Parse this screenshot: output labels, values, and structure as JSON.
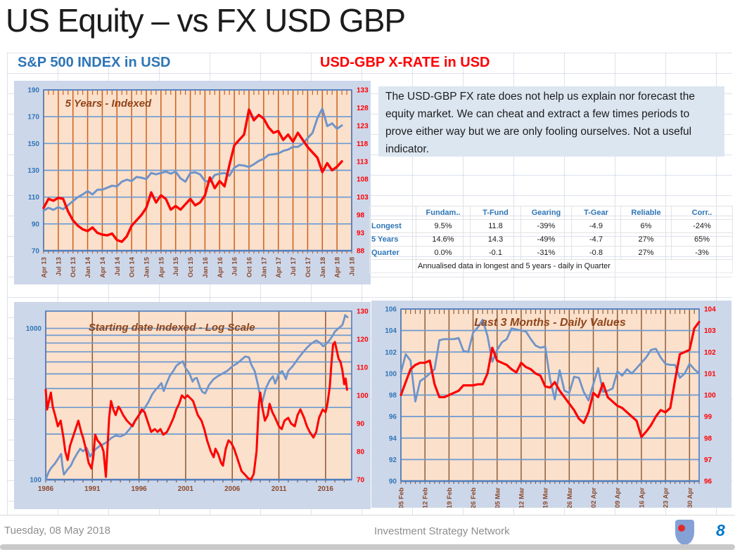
{
  "page": {
    "title": "US Equity – vs FX USD GBP",
    "footer_date": "Tuesday, 08 May 2018",
    "footer_center": "Investment Strategy Network",
    "page_number": "8"
  },
  "headers": {
    "left": "S&P 500 INDEX  in  USD",
    "right": "USD-GBP X-RATE  in  USD"
  },
  "commentary": "The USD-GBP FX rate does not help us explain nor forecast the equity market.  We can cheat and extract a few times periods to prove either way but we are only fooling ourselves.  Not a useful indicator.",
  "table": {
    "headers": [
      "",
      "Fundam..",
      "T-Fund",
      "Gearing",
      "T-Gear",
      "Reliable",
      "Corr.."
    ],
    "rows": [
      {
        "label": "Longest",
        "cells": [
          "9.5%",
          "11.8",
          "-39%",
          "-4.9",
          "6%",
          "-24%"
        ]
      },
      {
        "label": "5 Years",
        "cells": [
          "14.6%",
          "14.3",
          "-49%",
          "-4.7",
          "27%",
          "65%"
        ]
      },
      {
        "label": "Quarter",
        "cells": [
          "0.0%",
          "-0.1",
          "-31%",
          "-0.8",
          "27%",
          "-3%"
        ]
      }
    ],
    "note": "Annualised data in longest and 5 years - daily in Quarter"
  },
  "colors": {
    "header_blue": "#2E75B6",
    "header_red": "#FF0000",
    "chart_bg": "#CDD7EA",
    "plot_bg": "#FBE0CB",
    "frame_blue": "#4E7DBE",
    "series_blue": "#6F94C9",
    "series_red": "#FE0000",
    "title_brown": "#8F451A",
    "xlabel_brown": "#8B4A2B",
    "textbox_bg": "#DCE6F1",
    "footer_gray": "#8E8E8E",
    "page_number_blue": "#0077CC"
  },
  "chart_data": [
    {
      "type": "line",
      "name": "five-years-indexed",
      "title": "5 Years - Indexed",
      "x": {
        "min": 0,
        "max": 63,
        "grid_step": 3,
        "minor_step": 1,
        "label_step": 3,
        "rotated": true,
        "labels": [
          "Apr 13",
          "Jul 13",
          "Oct 13",
          "Jan 14",
          "Apr 14",
          "Jul 14",
          "Oct 14",
          "Jan 15",
          "Apr 15",
          "Jul 15",
          "Oct 15",
          "Jan 16",
          "Apr 16",
          "Jul 16",
          "Oct 16",
          "Jan 17",
          "Apr 17",
          "Jul 17",
          "Oct 17",
          "Jan 18",
          "Apr 18",
          "Jul 18"
        ]
      },
      "left": {
        "min": 70,
        "max": 190,
        "ticks": [
          190,
          170,
          150,
          130,
          110,
          90,
          70
        ]
      },
      "right": {
        "min": 88,
        "max": 133,
        "ticks": [
          133,
          128,
          123,
          118,
          113,
          108,
          103,
          98,
          93,
          88
        ]
      },
      "colors": {
        "vgrid": "#CE6018",
        "hgrid": "#6D9AD0"
      },
      "series": [
        {
          "name": "S&P 500 INDEX in USD",
          "axis": "left",
          "color": "#6F94C9",
          "width": 3,
          "y": [
            100,
            102,
            100.5,
            102.5,
            101,
            104,
            107,
            110,
            112,
            114.5,
            112,
            115.5,
            115.5,
            117,
            118.5,
            118,
            121.5,
            123,
            122,
            125,
            124.5,
            123.5,
            128,
            127,
            128,
            129,
            127.5,
            129,
            124,
            121.5,
            128,
            128.5,
            127,
            122,
            121.5,
            126.5,
            127.5,
            128,
            126,
            132,
            134,
            133.5,
            132.5,
            134.5,
            137,
            138.5,
            141.5,
            142,
            142.5,
            144.5,
            145.5,
            147.5,
            147.5,
            150,
            154,
            158,
            169,
            176,
            163,
            165,
            161,
            163.5
          ]
        },
        {
          "name": "USD-GBP X-RATE in USD",
          "axis": "right",
          "color": "#FE0000",
          "width": 3.4,
          "y": [
            100,
            102.5,
            102,
            102.8,
            102.5,
            99,
            96.5,
            95,
            94,
            93.5,
            94.5,
            93,
            92.5,
            92.3,
            92.8,
            91,
            90.5,
            92,
            95,
            96.5,
            98,
            100,
            104.3,
            101.5,
            103.5,
            102.5,
            99.5,
            100.5,
            99.5,
            101,
            102.5,
            100.7,
            101.5,
            103.5,
            108.5,
            105.5,
            107.5,
            106,
            112,
            117.5,
            119,
            120.5,
            127.5,
            124.5,
            126,
            125,
            122.5,
            121,
            121.5,
            119,
            120.5,
            118.5,
            121,
            119,
            117,
            115.5,
            114,
            110,
            112.5,
            110.5,
            111.5,
            113
          ]
        }
      ]
    },
    {
      "type": "line",
      "name": "starting-date-indexed-log-scale",
      "title": "Starting date Indexed - Log Scale",
      "x": {
        "min": 1986,
        "max": 2018.8,
        "minor_step": 1,
        "rotated": false,
        "grid_vals": [
          1986,
          1991,
          1996,
          2001,
          2006,
          2011,
          2016
        ],
        "label_vals": [
          1986,
          1991,
          1996,
          2001,
          2006,
          2011,
          2016
        ],
        "labels": [
          "1986",
          "1991",
          "1996",
          "2001",
          "2006",
          "2011",
          "2016"
        ]
      },
      "left": {
        "log": true,
        "min": 100,
        "max": 1300,
        "ticks": [
          1000,
          100
        ],
        "grid": [
          100,
          200,
          300,
          400,
          500,
          600,
          700,
          800,
          900,
          1000
        ]
      },
      "right": {
        "min": 70,
        "max": 130,
        "ticks": [
          130,
          120,
          110,
          100,
          90,
          80,
          70
        ]
      },
      "colors": {
        "vgrid": "#8B5530",
        "hgrid": "#6D9AD0"
      },
      "series": [
        {
          "name": "S&P 500 INDEX in USD",
          "axis": "left",
          "color": "#6F94C9",
          "width": 2.8,
          "x": [
            1986,
            1986.3,
            1986.6,
            1987,
            1987.4,
            1987.65,
            1987.8,
            1987.95,
            1988.3,
            1988.7,
            1989,
            1989.4,
            1989.7,
            1990,
            1990.4,
            1990.75,
            1991,
            1991.4,
            1991.8,
            1992.2,
            1992.6,
            1993,
            1993.5,
            1994,
            1994.5,
            1995,
            1995.5,
            1996,
            1996.5,
            1997,
            1997.4,
            1997.8,
            1998,
            1998.4,
            1998.65,
            1998.9,
            1999.3,
            1999.7,
            2000,
            2000.3,
            2000.7,
            2001,
            2001.4,
            2001.75,
            2001.95,
            2002.2,
            2002.55,
            2002.8,
            2003.1,
            2003.5,
            2004,
            2004.5,
            2005,
            2005.5,
            2006,
            2006.5,
            2007,
            2007.4,
            2007.8,
            2008,
            2008.4,
            2008.75,
            2009,
            2009.2,
            2009.6,
            2010,
            2010.35,
            2010.6,
            2011,
            2011.35,
            2011.75,
            2012,
            2012.5,
            2013,
            2013.5,
            2014,
            2014.5,
            2015,
            2015.4,
            2015.75,
            2016,
            2016.4,
            2016.8,
            2017,
            2017.4,
            2017.8,
            2018,
            2018.1,
            2018.35
          ],
          "y": [
            100,
            112,
            120,
            128,
            140,
            148,
            122,
            108,
            116,
            124,
            136,
            150,
            160,
            154,
            162,
            142,
            150,
            160,
            167,
            172,
            178,
            188,
            196,
            193,
            199,
            216,
            242,
            268,
            290,
            325,
            365,
            395,
            405,
            435,
            385,
            425,
            485,
            525,
            565,
            585,
            605,
            545,
            505,
            445,
            465,
            470,
            405,
            380,
            372,
            422,
            462,
            485,
            505,
            525,
            562,
            585,
            622,
            652,
            642,
            582,
            522,
            425,
            352,
            322,
            402,
            452,
            482,
            432,
            502,
            522,
            462,
            522,
            565,
            625,
            685,
            745,
            795,
            832,
            802,
            762,
            782,
            832,
            902,
            952,
            1002,
            1052,
            1152,
            1222,
            1185
          ]
        },
        {
          "name": "USD-GBP X-RATE in USD",
          "axis": "right",
          "color": "#FE0000",
          "width": 3,
          "x": [
            1986,
            1986.15,
            1986.35,
            1986.55,
            1986.75,
            1987,
            1987.3,
            1987.6,
            1987.9,
            1988.1,
            1988.35,
            1988.6,
            1988.9,
            1989.2,
            1989.5,
            1989.8,
            1990,
            1990.3,
            1990.6,
            1990.9,
            1991.1,
            1991.3,
            1991.55,
            1991.8,
            1992,
            1992.2,
            1992.45,
            1992.6,
            1992.8,
            1993,
            1993.25,
            1993.5,
            1993.8,
            1994,
            1994.3,
            1994.7,
            1995,
            1995.3,
            1995.6,
            1996,
            1996.3,
            1996.6,
            1997,
            1997.3,
            1997.7,
            1998,
            1998.3,
            1998.6,
            1999,
            1999.3,
            1999.7,
            2000,
            2000.3,
            2000.6,
            2000.9,
            2001.2,
            2001.5,
            2001.8,
            2002,
            2002.3,
            2002.7,
            2003,
            2003.3,
            2003.7,
            2004,
            2004.2,
            2004.5,
            2004.8,
            2005,
            2005.3,
            2005.6,
            2005.9,
            2006.2,
            2006.5,
            2006.8,
            2007,
            2007.3,
            2007.7,
            2008,
            2008.3,
            2008.6,
            2008.85,
            2009,
            2009.2,
            2009.5,
            2009.8,
            2010,
            2010.3,
            2010.6,
            2011,
            2011.3,
            2011.6,
            2012,
            2012.3,
            2012.7,
            2013,
            2013.3,
            2013.7,
            2014,
            2014.3,
            2014.7,
            2015,
            2015.3,
            2015.7,
            2016,
            2016.2,
            2016.45,
            2016.6,
            2016.8,
            2017,
            2017.2,
            2017.4,
            2017.6,
            2017.8,
            2018,
            2018.15,
            2018.3
          ],
          "y": [
            102,
            95,
            98,
            101,
            96,
            93,
            89,
            91,
            85,
            80,
            77,
            82,
            85,
            88,
            91,
            87,
            85,
            81,
            76,
            74,
            78,
            86,
            84,
            83,
            82,
            80,
            71,
            80,
            92,
            98,
            95,
            93,
            96,
            95,
            93,
            91,
            90,
            89,
            91,
            93,
            95,
            94,
            90,
            87,
            88,
            87,
            88,
            86,
            87,
            89,
            92,
            95,
            97,
            100,
            99,
            100,
            99,
            98,
            96,
            93,
            91,
            88,
            84,
            80,
            78,
            81,
            79,
            76,
            75,
            81,
            84,
            83,
            81,
            78,
            75,
            73,
            72,
            70.5,
            70,
            72,
            80,
            97,
            101,
            96,
            91,
            93,
            97,
            94,
            92,
            89,
            88,
            91,
            92,
            90,
            89,
            93,
            95,
            92,
            89,
            87,
            85,
            87,
            92,
            95,
            94,
            97,
            103,
            110,
            118,
            119,
            116,
            113,
            112,
            109,
            104,
            106,
            102
          ]
        }
      ]
    },
    {
      "type": "line",
      "name": "last-3-months-daily-values",
      "title": "Last 3 Months - Daily Values",
      "x": {
        "min": 0,
        "max": 62,
        "grid_step": 5,
        "minor_step": 1,
        "label_step": 5,
        "rotated": true,
        "labels": [
          "05 Feb",
          "12 Feb",
          "19 Feb",
          "26 Feb",
          "05 Mar",
          "12 Mar",
          "19 Mar",
          "26 Mar",
          "02 Apr",
          "09 Apr",
          "16 Apr",
          "23 Apr",
          "30 Apr"
        ]
      },
      "left": {
        "min": 90,
        "max": 106,
        "ticks": [
          106,
          104,
          102,
          100,
          98,
          96,
          94,
          92,
          90
        ]
      },
      "right": {
        "min": 96,
        "max": 104,
        "ticks": [
          104,
          103,
          102,
          101,
          100,
          99,
          98,
          97,
          96
        ]
      },
      "colors": {
        "vgrid": "#8F5F3C",
        "hgrid": "#6D9AD0"
      },
      "series": [
        {
          "name": "S&P 500 INDEX in USD",
          "axis": "left",
          "color": "#6F94C9",
          "width": 2.8,
          "y": [
            100.1,
            101.8,
            101.2,
            97.4,
            99.3,
            99.6,
            100.0,
            100.4,
            103.1,
            103.2,
            103.2,
            103.2,
            103.3,
            102.1,
            102.0,
            103.8,
            104.3,
            105.0,
            103.5,
            101.1,
            102.2,
            102.9,
            103.2,
            104.2,
            104.1,
            104.0,
            103.9,
            103.2,
            102.6,
            102.4,
            102.5,
            99.5,
            97.6,
            100.3,
            98.4,
            98.2,
            99.7,
            99.6,
            98.3,
            97.5,
            99.0,
            100.5,
            98.3,
            98.4,
            98.6,
            100.2,
            99.8,
            100.4,
            100.0,
            100.5,
            101.0,
            101.5,
            102.2,
            102.3,
            101.5,
            100.9,
            100.8,
            100.8,
            99.6,
            100.0,
            100.9,
            100.4,
            100.0
          ]
        },
        {
          "name": "USD-GBP X-RATE in USD",
          "axis": "right",
          "color": "#FE0000",
          "width": 3.2,
          "y": [
            100.0,
            100.6,
            101.2,
            101.4,
            101.5,
            101.5,
            101.6,
            100.5,
            99.9,
            99.9,
            100.0,
            100.1,
            100.2,
            100.45,
            100.45,
            100.45,
            100.5,
            100.5,
            101.0,
            102.2,
            101.6,
            101.5,
            101.4,
            101.2,
            101.05,
            101.5,
            101.3,
            101.2,
            101.0,
            100.9,
            100.4,
            100.35,
            100.6,
            100.2,
            99.9,
            99.6,
            99.3,
            98.9,
            98.7,
            99.2,
            100.1,
            99.9,
            100.55,
            99.9,
            99.7,
            99.5,
            99.4,
            99.2,
            99.0,
            98.8,
            98.05,
            98.3,
            98.6,
            99.0,
            99.3,
            99.2,
            99.4,
            100.7,
            101.9,
            102.0,
            102.1,
            103.1,
            103.4
          ]
        }
      ]
    }
  ]
}
